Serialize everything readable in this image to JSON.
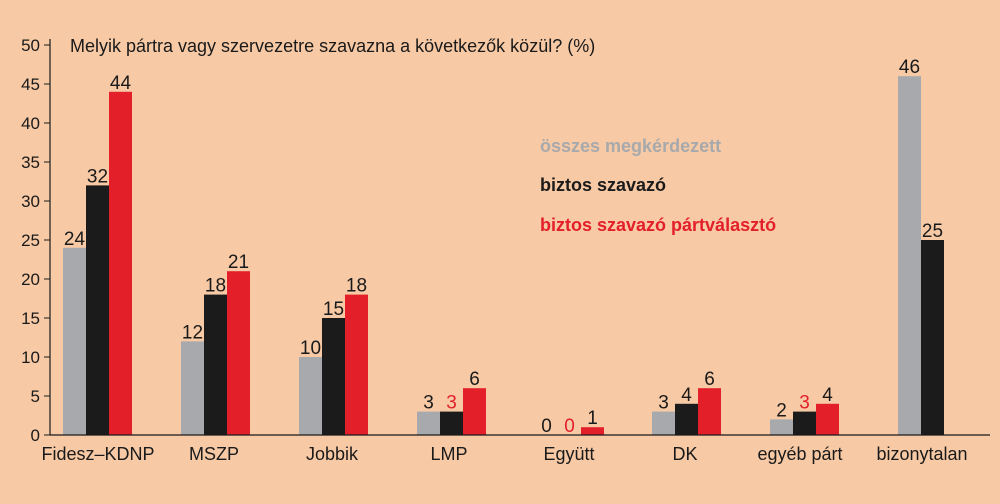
{
  "chart_data": {
    "type": "bar",
    "title": "Melyik pártra vagy szervezetre szavazna a következők közül? (%)",
    "xlabel": "",
    "ylabel": "",
    "ylim": [
      0,
      50
    ],
    "yticks": [
      0,
      5,
      10,
      15,
      20,
      25,
      30,
      35,
      40,
      45,
      50
    ],
    "grid": false,
    "legend_position": "center-right",
    "categories": [
      "Fidesz–KDNP",
      "MSZP",
      "Jobbik",
      "LMP",
      "Együtt",
      "DK",
      "egyéb párt",
      "bizonytalan"
    ],
    "series": [
      {
        "name": "összes megkérdezett",
        "color": "#a7a9ac",
        "label_color": "#1a1a1a",
        "values": [
          24,
          12,
          10,
          3,
          0,
          3,
          2,
          46
        ]
      },
      {
        "name": "biztos szavazó",
        "color": "#1b1b1b",
        "label_color": "#1a1a1a",
        "values": [
          32,
          18,
          15,
          3,
          0,
          4,
          3,
          25
        ]
      },
      {
        "name": "biztos szavazó pártválasztó",
        "color": "#e3202a",
        "label_color": "#1a1a1a",
        "values": [
          44,
          21,
          18,
          6,
          1,
          6,
          4,
          null
        ]
      }
    ],
    "data_labels": [
      [
        "24",
        "12",
        "10",
        "3",
        "0",
        "3",
        "2",
        "46"
      ],
      [
        "32",
        "18",
        "15",
        "3",
        "0",
        "4",
        "3",
        "25"
      ],
      [
        "44",
        "21",
        "18",
        "6",
        "1",
        "6",
        "4",
        null
      ]
    ]
  }
}
